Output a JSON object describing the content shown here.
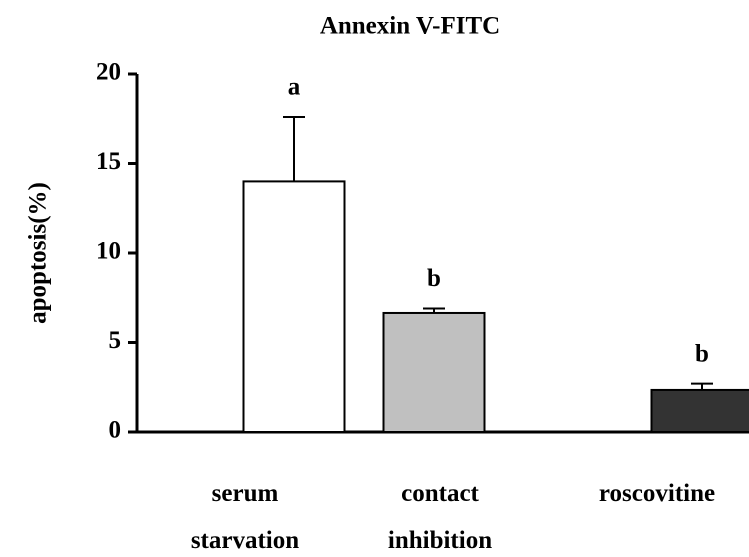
{
  "chart_data": {
    "type": "bar",
    "title": "Annexin V-FITC",
    "y_label": "apoptosis(%)",
    "categories": [
      "serum starvation",
      "contact inhibition",
      "roscovitine"
    ],
    "values": [
      14,
      6.65,
      2.35
    ],
    "errors": [
      3.6,
      0.25,
      0.35
    ],
    "colors": [
      "#ffffff",
      "#c0c0c0",
      "#333333"
    ],
    "annotations": [
      "a",
      "b",
      "b"
    ],
    "ylim": [
      0,
      20
    ],
    "yticks": [
      0,
      5,
      10,
      15,
      20
    ],
    "grid": false
  }
}
